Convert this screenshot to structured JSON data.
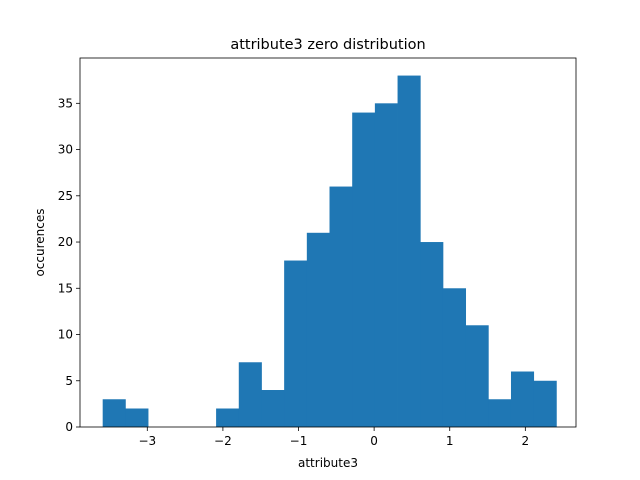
{
  "chart_data": {
    "type": "bar",
    "title": "attribute3 zero distribution",
    "xlabel": "attribute3",
    "ylabel": "occurences",
    "bar_color": "#1f77b4",
    "grid": false,
    "xlim": [
      -3.89,
      2.67
    ],
    "ylim": [
      0,
      39.9
    ],
    "x_ticks": [
      {
        "value": -3,
        "label": "−3"
      },
      {
        "value": -2,
        "label": "−2"
      },
      {
        "value": -1,
        "label": "−1"
      },
      {
        "value": 0,
        "label": "0"
      },
      {
        "value": 1,
        "label": "1"
      },
      {
        "value": 2,
        "label": "2"
      }
    ],
    "y_ticks": [
      {
        "value": 0,
        "label": "0"
      },
      {
        "value": 5,
        "label": "5"
      },
      {
        "value": 10,
        "label": "10"
      },
      {
        "value": 15,
        "label": "15"
      },
      {
        "value": 20,
        "label": "20"
      },
      {
        "value": 25,
        "label": "25"
      },
      {
        "value": 30,
        "label": "30"
      },
      {
        "value": 35,
        "label": "35"
      }
    ],
    "bin_edges": [
      -3.59,
      -3.29,
      -2.99,
      -2.69,
      -2.39,
      -2.09,
      -1.79,
      -1.49,
      -1.19,
      -0.89,
      -0.59,
      -0.29,
      0.01,
      0.31,
      0.61,
      0.91,
      1.21,
      1.51,
      1.81,
      2.11,
      2.41
    ],
    "values": [
      3,
      2,
      0,
      0,
      0,
      2,
      7,
      4,
      18,
      21,
      26,
      34,
      35,
      38,
      20,
      15,
      11,
      3,
      6,
      5
    ]
  }
}
